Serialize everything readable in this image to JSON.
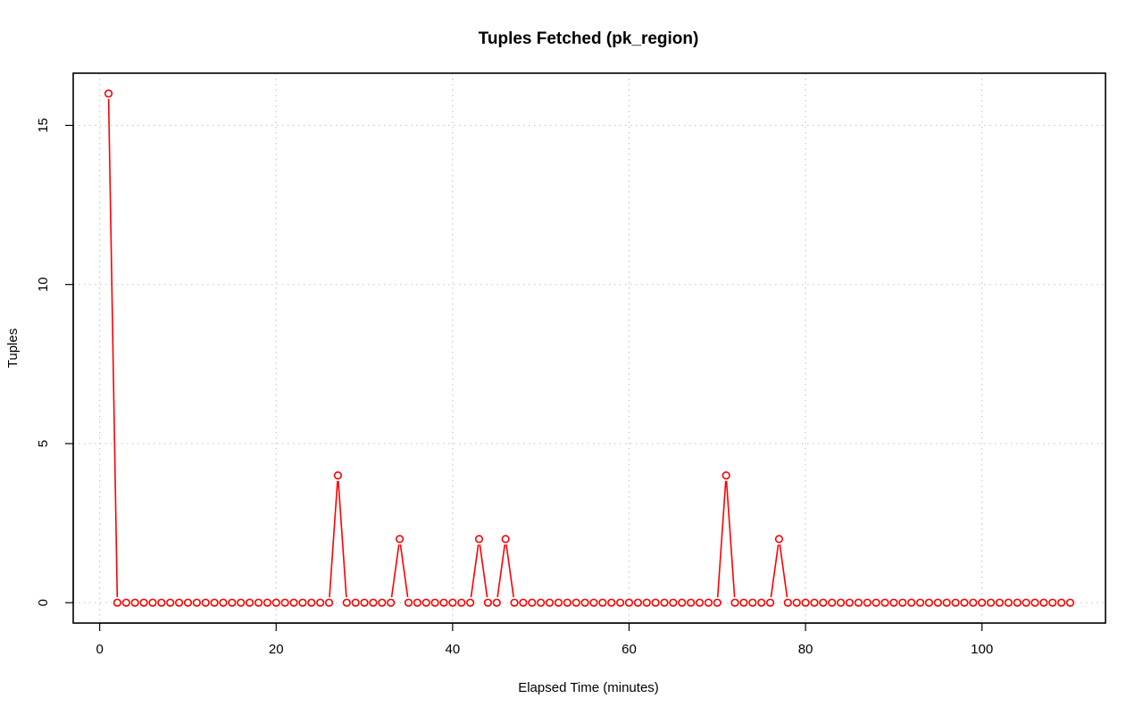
{
  "chart_data": {
    "type": "line",
    "title": "Tuples Fetched (pk_region)",
    "xlabel": "Elapsed Time (minutes)",
    "ylabel": "Tuples",
    "xlim": [
      -3,
      114
    ],
    "ylim": [
      -0.64,
      16.64
    ],
    "x_ticks": [
      0,
      20,
      40,
      60,
      80,
      100
    ],
    "y_ticks": [
      0,
      5,
      10,
      15
    ],
    "grid": true,
    "legend": "none",
    "colors": {
      "series": "#ff0000",
      "grid": "#c8c8c8",
      "axis": "#000000"
    },
    "series": [
      {
        "x_start": 1,
        "x_step": 1,
        "values": [
          16,
          0,
          0,
          0,
          0,
          0,
          0,
          0,
          0,
          0,
          0,
          0,
          0,
          0,
          0,
          0,
          0,
          0,
          0,
          0,
          0,
          0,
          0,
          0,
          0,
          0,
          4,
          0,
          0,
          0,
          0,
          0,
          0,
          2,
          0,
          0,
          0,
          0,
          0,
          0,
          0,
          0,
          2,
          0,
          0,
          2,
          0,
          0,
          0,
          0,
          0,
          0,
          0,
          0,
          0,
          0,
          0,
          0,
          0,
          0,
          0,
          0,
          0,
          0,
          0,
          0,
          0,
          0,
          0,
          0,
          4,
          0,
          0,
          0,
          0,
          0,
          2,
          0,
          0,
          0,
          0,
          0,
          0,
          0,
          0,
          0,
          0,
          0,
          0,
          0,
          0,
          0,
          0,
          0,
          0,
          0,
          0,
          0,
          0,
          0,
          0,
          0,
          0,
          0,
          0,
          0,
          0,
          0,
          0,
          0
        ]
      }
    ]
  }
}
